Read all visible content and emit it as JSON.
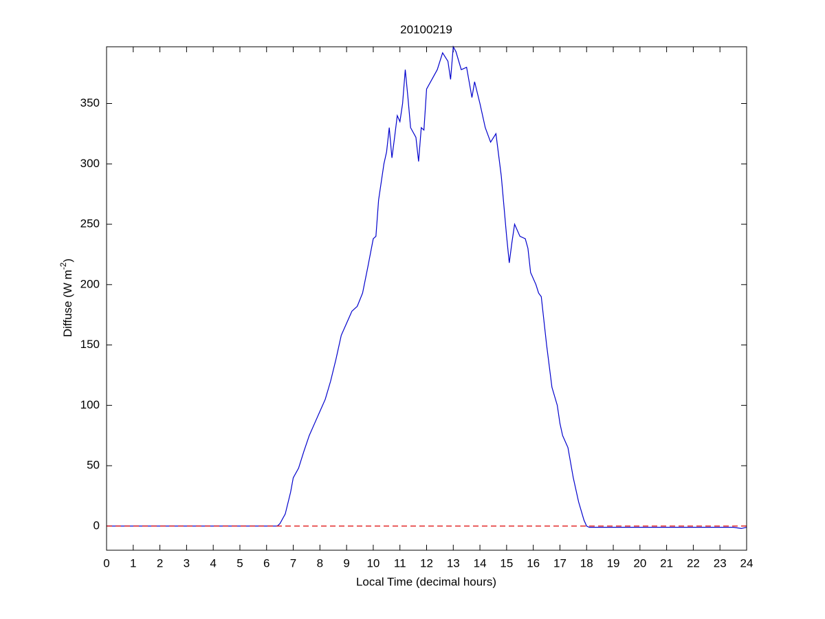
{
  "chart_data": {
    "type": "line",
    "title": "20100219",
    "xlabel": "Local Time (decimal hours)",
    "ylabel": [
      "Diffuse (W m",
      "-2",
      ")"
    ],
    "xlim": [
      0,
      24
    ],
    "xticks": [
      0,
      1,
      2,
      3,
      4,
      5,
      6,
      7,
      8,
      9,
      10,
      11,
      12,
      13,
      14,
      15,
      16,
      17,
      18,
      19,
      20,
      21,
      22,
      23,
      24
    ],
    "ylim": [
      -20,
      397
    ],
    "yticks": [
      0,
      50,
      100,
      150,
      200,
      250,
      300,
      350
    ],
    "grid": false,
    "series": [
      {
        "color": "#0000cc",
        "dash": "solid",
        "x": [
          0,
          1,
          2,
          3,
          4,
          5,
          6,
          6.4,
          6.5,
          6.7,
          6.9,
          7.0,
          7.2,
          7.4,
          7.6,
          7.8,
          8.0,
          8.2,
          8.4,
          8.6,
          8.8,
          9.0,
          9.2,
          9.4,
          9.6,
          9.8,
          10.0,
          10.1,
          10.2,
          10.4,
          10.5,
          10.6,
          10.7,
          10.8,
          10.9,
          11.0,
          11.1,
          11.2,
          11.3,
          11.4,
          11.6,
          11.7,
          11.8,
          11.9,
          12.0,
          12.2,
          12.4,
          12.6,
          12.8,
          12.9,
          13.0,
          13.1,
          13.3,
          13.5,
          13.7,
          13.8,
          14.0,
          14.2,
          14.4,
          14.6,
          14.8,
          15.0,
          15.1,
          15.2,
          15.3,
          15.5,
          15.7,
          15.8,
          15.9,
          16.1,
          16.2,
          16.3,
          16.5,
          16.7,
          16.9,
          17.0,
          17.1,
          17.3,
          17.5,
          17.7,
          17.9,
          18.0,
          18.1,
          19,
          20,
          21,
          22,
          23,
          23.5,
          23.8,
          24
        ],
        "values": [
          0,
          0,
          0,
          0,
          0,
          0,
          0,
          0,
          2,
          10,
          28,
          40,
          48,
          62,
          75,
          85,
          95,
          105,
          120,
          138,
          158,
          168,
          178,
          182,
          193,
          215,
          238,
          240,
          270,
          300,
          310,
          330,
          305,
          322,
          340,
          335,
          350,
          378,
          355,
          330,
          322,
          302,
          330,
          328,
          362,
          370,
          378,
          392,
          385,
          370,
          397,
          393,
          378,
          380,
          355,
          368,
          350,
          330,
          318,
          325,
          290,
          240,
          218,
          235,
          250,
          240,
          238,
          230,
          210,
          200,
          193,
          190,
          150,
          115,
          100,
          85,
          75,
          65,
          40,
          20,
          5,
          0,
          -1,
          -1,
          -1,
          -1,
          -1,
          -1,
          -1,
          -2,
          -1
        ]
      },
      {
        "color": "#dd0000",
        "dash": "dashed",
        "x": [
          0,
          24
        ],
        "values": [
          0,
          0
        ]
      }
    ]
  }
}
